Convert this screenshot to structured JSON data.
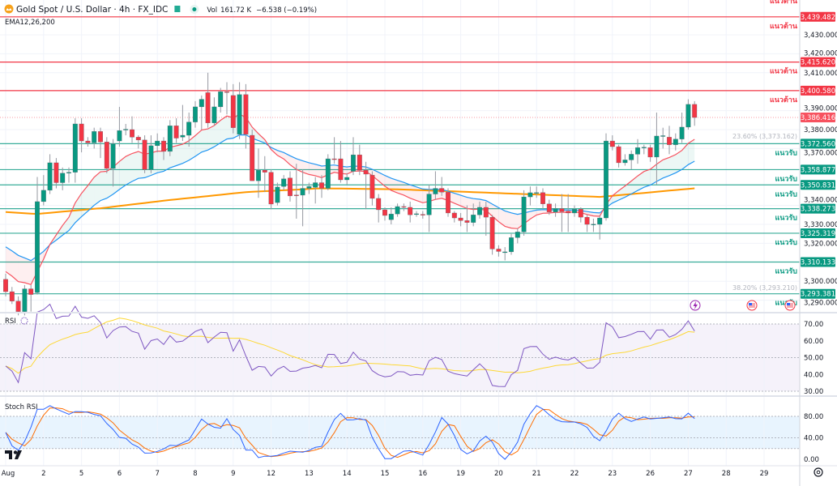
{
  "header": {
    "symbol": "Gold Spot / U.S. Dollar · 4h · FX_IDC",
    "vol_label": "Vol",
    "vol_value": "161.72 K",
    "change": "−6.538 (−0.19%)",
    "indicator": "EMA12,26,200"
  },
  "colors": {
    "up": "#089981",
    "down": "#f23645",
    "ema12": "#f7525f",
    "ema26": "#2196f3",
    "ema200": "#ff9800",
    "rsi": "#7e57c2",
    "rsi_ma": "#fdd835",
    "stoch_k": "#2962ff",
    "stoch_d": "#ff6d00"
  },
  "rsi": {
    "title": "RSI",
    "ticks": [
      "70.00",
      "60.00",
      "50.00",
      "40.00",
      "30.00"
    ]
  },
  "stoch": {
    "title": "Stoch RSI",
    "ticks": [
      "80.00",
      "40.00",
      "0.00"
    ]
  },
  "chart_data": {
    "type": "candlestick",
    "title": "Gold Spot / U.S. Dollar · 4h · FX_IDC",
    "ylim": [
      3285,
      3445
    ],
    "price_ticks": [
      "3,430.000",
      "3,420.000",
      "3,410.000",
      "3,390.000",
      "3,380.000",
      "3,370.000",
      "3,340.000",
      "3,330.000",
      "3,320.000",
      "3,300.000",
      "3,290.000"
    ],
    "price_tick_values": [
      3430,
      3420,
      3410,
      3390,
      3380,
      3370,
      3340,
      3330,
      3320,
      3300,
      3290
    ],
    "x_ticks": [
      {
        "label": "Aug",
        "index": 0
      },
      {
        "label": "2",
        "index": 6
      },
      {
        "label": "5",
        "index": 12
      },
      {
        "label": "6",
        "index": 18
      },
      {
        "label": "7",
        "index": 24
      },
      {
        "label": "8",
        "index": 30
      },
      {
        "label": "9",
        "index": 36
      },
      {
        "label": "12",
        "index": 42
      },
      {
        "label": "13",
        "index": 48
      },
      {
        "label": "14",
        "index": 54
      },
      {
        "label": "15",
        "index": 60
      },
      {
        "label": "16",
        "index": 66
      },
      {
        "label": "19",
        "index": 72
      },
      {
        "label": "20",
        "index": 78
      },
      {
        "label": "21",
        "index": 84
      },
      {
        "label": "22",
        "index": 90
      },
      {
        "label": "23",
        "index": 96
      },
      {
        "label": "26",
        "index": 102
      },
      {
        "label": "27",
        "index": 108
      },
      {
        "label": "28",
        "index": 114
      },
      {
        "label": "29",
        "index": 120
      }
    ],
    "levels": [
      {
        "value": 3439.482,
        "label": "3,439.482",
        "kind": "resistance",
        "zone": "แนวต้าน"
      },
      {
        "value": 3415.62,
        "label": "3,415.620",
        "kind": "resistance",
        "zone": "แนวต้าน"
      },
      {
        "value": 3400.58,
        "label": "3,400.580",
        "kind": "resistance",
        "zone": "แนวต้าน"
      },
      {
        "value": 3372.56,
        "label": "3,372.560",
        "kind": "support",
        "zone": "แนวรับ"
      },
      {
        "value": 3358.877,
        "label": "3,358.877",
        "kind": "support",
        "zone": "แนวรับ"
      },
      {
        "value": 3350.831,
        "label": "3,350.831",
        "kind": "support",
        "zone": "แนวรับ"
      },
      {
        "value": 3338.273,
        "label": "3,338.273",
        "kind": "support",
        "zone": "แนวรับ"
      },
      {
        "value": 3325.319,
        "label": "3,325.319",
        "kind": "support",
        "zone": "แนวรับ"
      },
      {
        "value": 3310.133,
        "label": "3,310.133",
        "kind": "support",
        "zone": "แนวรับ"
      },
      {
        "value": 3293.381,
        "label": "3,293.381",
        "kind": "support",
        "zone": "แนวรับ"
      }
    ],
    "top_zone_label": "แนวต้าน",
    "last_price": {
      "value": 3386.416,
      "label": "3,386.416"
    },
    "fib": [
      {
        "value": 3373.162,
        "label": "23.60% (3,373.162)"
      },
      {
        "value": 3293.21,
        "label": "38.20% (3,293.210)"
      }
    ],
    "ema_periods": [
      12,
      26,
      200
    ],
    "ema_seed": {
      "ema12": 3307,
      "ema26": 3320
    },
    "ema200_points": [
      [
        0,
        3336.5
      ],
      [
        5,
        3335.5
      ],
      [
        15,
        3338.5
      ],
      [
        25,
        3342.5
      ],
      [
        38,
        3347
      ],
      [
        50,
        3349
      ],
      [
        62,
        3348.5
      ],
      [
        74,
        3347
      ],
      [
        94,
        3344.5
      ],
      [
        109,
        3349
      ]
    ],
    "candles_ohlc": [
      [
        3301,
        3304,
        3292,
        3294.5
      ],
      [
        3294.5,
        3297,
        3288,
        3289.5
      ],
      [
        3289.5,
        3292,
        3282,
        3284
      ],
      [
        3284,
        3298,
        3282,
        3296
      ],
      [
        3296,
        3298,
        3284,
        3293
      ],
      [
        3294,
        3355,
        3293,
        3342
      ],
      [
        3342,
        3356,
        3340,
        3348
      ],
      [
        3348,
        3367,
        3346,
        3362.5
      ],
      [
        3362.5,
        3365,
        3349,
        3352
      ],
      [
        3352,
        3360,
        3348,
        3357
      ],
      [
        3357,
        3360,
        3352,
        3357.5
      ],
      [
        3357.5,
        3386,
        3352,
        3383
      ],
      [
        3383,
        3386,
        3368,
        3374
      ],
      [
        3374,
        3376,
        3371,
        3373
      ],
      [
        3373,
        3381,
        3370,
        3379
      ],
      [
        3379,
        3381,
        3365,
        3373.5
      ],
      [
        3373.5,
        3376,
        3357,
        3359.5
      ],
      [
        3359.5,
        3375,
        3350,
        3372.5
      ],
      [
        3374,
        3392,
        3371,
        3379.5
      ],
      [
        3380,
        3383,
        3377,
        3380.2
      ],
      [
        3380,
        3387,
        3373,
        3376
      ],
      [
        3376,
        3377,
        3370,
        3374.5
      ],
      [
        3374.5,
        3377,
        3357,
        3359
      ],
      [
        3359,
        3377,
        3357,
        3371.5
      ],
      [
        3371.5,
        3378,
        3368,
        3374
      ],
      [
        3374,
        3376,
        3364,
        3368.5
      ],
      [
        3368.5,
        3385,
        3366,
        3382
      ],
      [
        3382,
        3386,
        3373,
        3375.5
      ],
      [
        3376,
        3393,
        3374,
        3377
      ],
      [
        3377,
        3389,
        3371,
        3384
      ],
      [
        3384,
        3395,
        3381,
        3392
      ],
      [
        3392,
        3398,
        3380,
        3396
      ],
      [
        3399.5,
        3410,
        3381,
        3383.5
      ],
      [
        3383.5,
        3397,
        3382,
        3392
      ],
      [
        3392,
        3402,
        3389,
        3400
      ],
      [
        3400,
        3405,
        3388,
        3399.6
      ],
      [
        3398,
        3404,
        3378,
        3381
      ],
      [
        3377.5,
        3405,
        3375,
        3398.5
      ],
      [
        3398.5,
        3404,
        3370,
        3377.5
      ],
      [
        3377,
        3380,
        3353,
        3353
      ],
      [
        3353,
        3370,
        3344,
        3358.6
      ],
      [
        3358.6,
        3366,
        3347,
        3357.5
      ],
      [
        3357.5,
        3359,
        3338,
        3340.7
      ],
      [
        3341.5,
        3352,
        3340,
        3349.7
      ],
      [
        3350,
        3356,
        3348,
        3354
      ],
      [
        3354.5,
        3358,
        3342,
        3345
      ],
      [
        3345.5,
        3362,
        3333,
        3345.4
      ],
      [
        3345.4,
        3359,
        3329,
        3349
      ],
      [
        3349,
        3352,
        3346,
        3350
      ],
      [
        3349.5,
        3355,
        3341,
        3352
      ],
      [
        3352,
        3356,
        3344,
        3349
      ],
      [
        3349,
        3367,
        3348,
        3364.6
      ],
      [
        3364.6,
        3376,
        3362,
        3364.4
      ],
      [
        3364.6,
        3374,
        3352,
        3353.5
      ],
      [
        3353.5,
        3357,
        3351,
        3354.8
      ],
      [
        3358,
        3376,
        3356,
        3366.7
      ],
      [
        3366.7,
        3372,
        3356,
        3358.6
      ],
      [
        3358.6,
        3363,
        3338,
        3356.5
      ],
      [
        3356,
        3358,
        3340,
        3343.7
      ],
      [
        3343.7,
        3346,
        3331,
        3337.7
      ],
      [
        3337.7,
        3339,
        3332,
        3334.7
      ],
      [
        3332.5,
        3339,
        3330,
        3335.5
      ],
      [
        3335.5,
        3341,
        3334,
        3339.4
      ],
      [
        3339.4,
        3341,
        3337,
        3339
      ],
      [
        3339,
        3342,
        3331,
        3335
      ],
      [
        3335.5,
        3337,
        3334,
        3335.6
      ],
      [
        3335.3,
        3337,
        3333,
        3335
      ],
      [
        3335,
        3351,
        3326,
        3346
      ],
      [
        3346,
        3358,
        3343,
        3349
      ],
      [
        3349,
        3355,
        3345,
        3347
      ],
      [
        3347,
        3349,
        3334,
        3336
      ],
      [
        3336,
        3337,
        3331,
        3333.4
      ],
      [
        3333.4,
        3336,
        3329,
        3332
      ],
      [
        3332,
        3340,
        3326,
        3331
      ],
      [
        3331,
        3341,
        3329,
        3335
      ],
      [
        3335,
        3342,
        3333,
        3339
      ],
      [
        3339,
        3342,
        3324,
        3333.8
      ],
      [
        3333.8,
        3335,
        3314,
        3317
      ],
      [
        3317,
        3319,
        3313,
        3315.7
      ],
      [
        3315.5,
        3318,
        3311,
        3315.5
      ],
      [
        3315.5,
        3325,
        3314,
        3323
      ],
      [
        3323,
        3328,
        3320,
        3326
      ],
      [
        3326,
        3348,
        3324,
        3344.5
      ],
      [
        3344.5,
        3350,
        3340,
        3346.7
      ],
      [
        3346.7,
        3350,
        3344,
        3346.8
      ],
      [
        3346.8,
        3349,
        3338,
        3340.8
      ],
      [
        3340.8,
        3343,
        3335,
        3336.5
      ],
      [
        3336.5,
        3341,
        3334,
        3338.3
      ],
      [
        3338.3,
        3346,
        3326,
        3336.8
      ],
      [
        3337,
        3346,
        3326,
        3336
      ],
      [
        3336,
        3340,
        3334,
        3338
      ],
      [
        3338,
        3339,
        3331,
        3333.8
      ],
      [
        3333.8,
        3335,
        3326,
        3330
      ],
      [
        3330,
        3333,
        3326,
        3330.1
      ],
      [
        3330,
        3335,
        3322,
        3333.4
      ],
      [
        3333.4,
        3378,
        3332,
        3374
      ],
      [
        3374,
        3377,
        3369,
        3371
      ],
      [
        3371,
        3372,
        3360,
        3362.5
      ],
      [
        3362.5,
        3367,
        3361,
        3364
      ],
      [
        3364,
        3369,
        3359,
        3367
      ],
      [
        3367,
        3375,
        3362,
        3370.5
      ],
      [
        3370.5,
        3372,
        3367,
        3370.7
      ],
      [
        3370.5,
        3372,
        3363,
        3365.5
      ],
      [
        3365.5,
        3389,
        3351,
        3376.6
      ],
      [
        3376.6,
        3381,
        3370,
        3376.8
      ],
      [
        3376,
        3382,
        3367,
        3372
      ],
      [
        3372,
        3378,
        3369,
        3375
      ],
      [
        3375,
        3389,
        3373,
        3381.3
      ],
      [
        3381.3,
        3396,
        3380,
        3393.3
      ],
      [
        3393.3,
        3395,
        3382,
        3386.4
      ]
    ]
  }
}
